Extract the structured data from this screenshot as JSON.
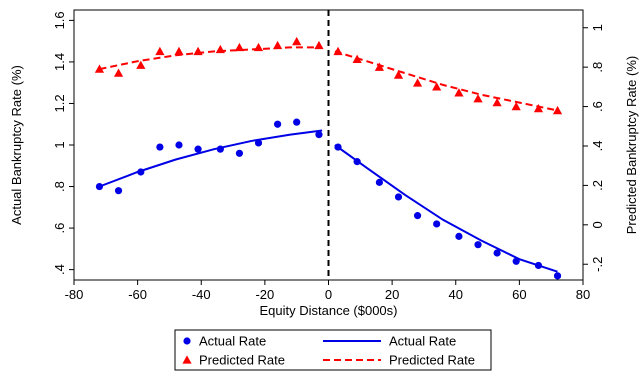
{
  "chart_data": {
    "type": "scatter",
    "xlabel": "Equity Distance ($000s)",
    "ylabel_left": "Actual Bankruptcy Rate (%)",
    "ylabel_right": "Predicted Bankruptcy Rate (%)",
    "xlim": [
      -80,
      80
    ],
    "ylim_left": [
      0.35,
      1.65
    ],
    "ylim_right": [
      -0.28,
      1.09
    ],
    "x_ticks": [
      -80,
      -60,
      -40,
      -20,
      0,
      20,
      40,
      60,
      80
    ],
    "x_tick_labels": [
      "-80",
      "-60",
      "-40",
      "-20",
      "0",
      "20",
      "40",
      "60",
      "80"
    ],
    "y_left_ticks": [
      0.4,
      0.6,
      0.8,
      1.0,
      1.2,
      1.4,
      1.6
    ],
    "y_left_tick_labels": [
      ".4",
      ".6",
      ".8",
      "1",
      "1.2",
      "1.4",
      "1.6"
    ],
    "y_right_ticks": [
      -0.2,
      0,
      0.2,
      0.4,
      0.6,
      0.8,
      1.0
    ],
    "y_right_tick_labels": [
      "-.2",
      "0",
      ".2",
      ".4",
      ".6",
      ".8",
      "1"
    ],
    "cutoff_x": 0,
    "grid": false,
    "legend_position": "bottom",
    "series": [
      {
        "name": "Actual Rate",
        "kind": "scatter",
        "axis": "left",
        "marker": "circle",
        "color": "#0000e6",
        "x": [
          -72,
          -66,
          -59,
          -53,
          -47,
          -41,
          -34,
          -28,
          -22,
          -16,
          -10,
          -3,
          3,
          9,
          16,
          22,
          28,
          34,
          41,
          47,
          53,
          59,
          66,
          72
        ],
        "y": [
          0.8,
          0.78,
          0.87,
          0.99,
          1.0,
          0.98,
          0.98,
          0.96,
          1.01,
          1.1,
          1.11,
          1.05,
          0.99,
          0.92,
          0.82,
          0.75,
          0.66,
          0.62,
          0.56,
          0.52,
          0.48,
          0.44,
          0.42,
          0.37
        ]
      },
      {
        "name": "Predicted Rate",
        "kind": "scatter",
        "axis": "right",
        "marker": "triangle",
        "color": "#ff0000",
        "x": [
          -72,
          -66,
          -59,
          -53,
          -47,
          -41,
          -34,
          -28,
          -22,
          -16,
          -10,
          -3,
          3,
          9,
          16,
          22,
          28,
          34,
          41,
          47,
          53,
          59,
          66,
          72
        ],
        "y": [
          0.79,
          0.77,
          0.81,
          0.88,
          0.88,
          0.88,
          0.89,
          0.9,
          0.9,
          0.91,
          0.93,
          0.91,
          0.88,
          0.84,
          0.8,
          0.76,
          0.72,
          0.7,
          0.67,
          0.64,
          0.62,
          0.6,
          0.59,
          0.58
        ]
      },
      {
        "name": "Actual Rate",
        "kind": "fit",
        "axis": "left",
        "style": "solid",
        "color": "#0000e6",
        "segments": [
          {
            "x": [
              -72,
              -60,
              -48,
              -36,
              -24,
              -12,
              -2
            ],
            "y": [
              0.8,
              0.87,
              0.93,
              0.98,
              1.02,
              1.05,
              1.07
            ]
          },
          {
            "x": [
              2,
              12,
              24,
              36,
              48,
              60,
              72
            ],
            "y": [
              1.0,
              0.89,
              0.76,
              0.64,
              0.54,
              0.45,
              0.39
            ]
          }
        ]
      },
      {
        "name": "Predicted Rate",
        "kind": "fit",
        "axis": "right",
        "style": "dashed",
        "color": "#ff0000",
        "segments": [
          {
            "x": [
              -72,
              -60,
              -48,
              -36,
              -24,
              -12,
              -2
            ],
            "y": [
              0.79,
              0.83,
              0.86,
              0.88,
              0.89,
              0.9,
              0.9
            ]
          },
          {
            "x": [
              2,
              12,
              24,
              36,
              48,
              60,
              72
            ],
            "y": [
              0.88,
              0.83,
              0.77,
              0.71,
              0.66,
              0.62,
              0.58
            ]
          }
        ]
      }
    ],
    "legend": [
      {
        "label": "Actual Rate",
        "symbol": "circle",
        "color": "#0000e6"
      },
      {
        "label": "Actual Rate",
        "symbol": "solid-line",
        "color": "#0000e6"
      },
      {
        "label": "Predicted Rate",
        "symbol": "triangle",
        "color": "#ff0000"
      },
      {
        "label": "Predicted Rate",
        "symbol": "dashed-line",
        "color": "#ff0000"
      }
    ]
  }
}
